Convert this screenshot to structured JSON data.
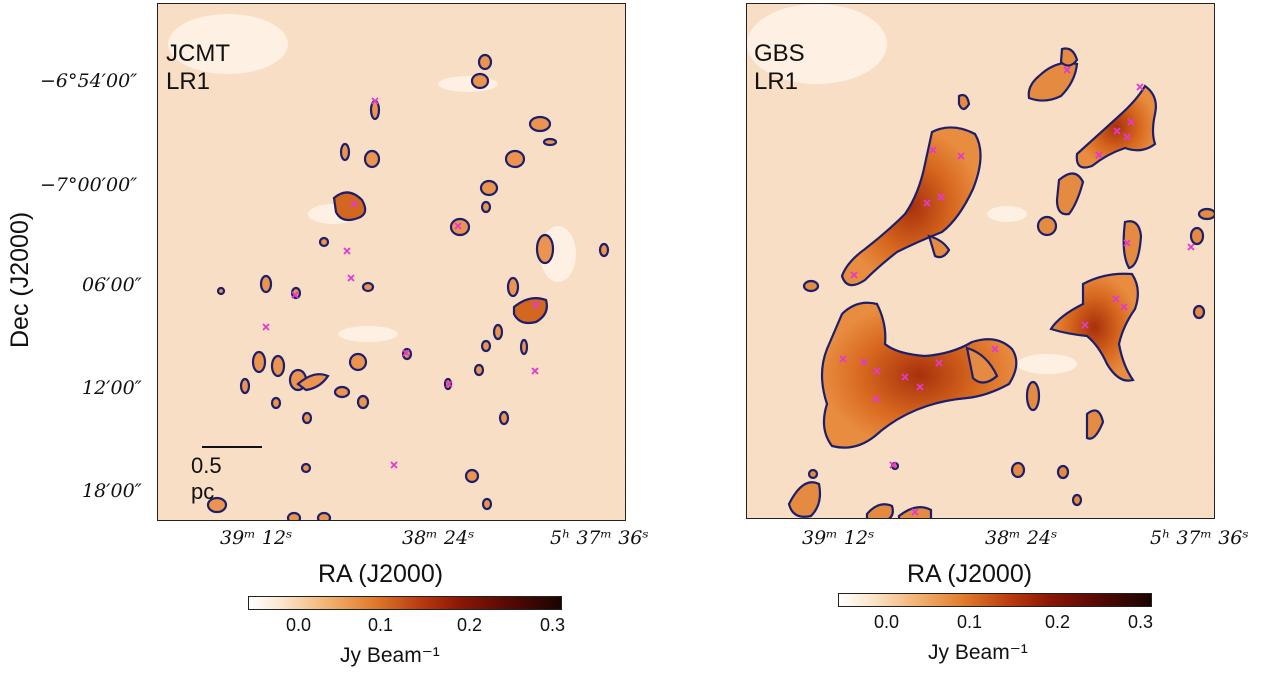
{
  "left_panel": {
    "title": "JCMT LR1",
    "dec_ticks": [
      "−6°54′00″",
      "−7°00′00″",
      "06′00″",
      "12′00″",
      "18′00″"
    ],
    "ra_ticks": [
      "39ᵐ 12ˢ",
      "38ᵐ 24ˢ",
      "5ʰ 37ᵐ 36ˢ"
    ],
    "xlabel": "RA (J2000)",
    "ylabel": "Dec (J2000)",
    "scalebar_label": "0.5 pc"
  },
  "right_panel": {
    "title": "GBS LR1",
    "ra_ticks": [
      "39ᵐ 12ˢ",
      "38ᵐ 24ˢ",
      "5ʰ 37ᵐ 36ˢ"
    ],
    "xlabel": "RA (J2000)"
  },
  "colorbar": {
    "ticks": [
      "0.0",
      "0.1",
      "0.2",
      "0.3"
    ],
    "label": "Jy Beam⁻¹",
    "colors": [
      "#ffffff",
      "#f2b373",
      "#e07b2c",
      "#8a1606",
      "#1a0400"
    ]
  },
  "contour_color": "#1c1f6b",
  "marker_color": "#e23ad0"
}
